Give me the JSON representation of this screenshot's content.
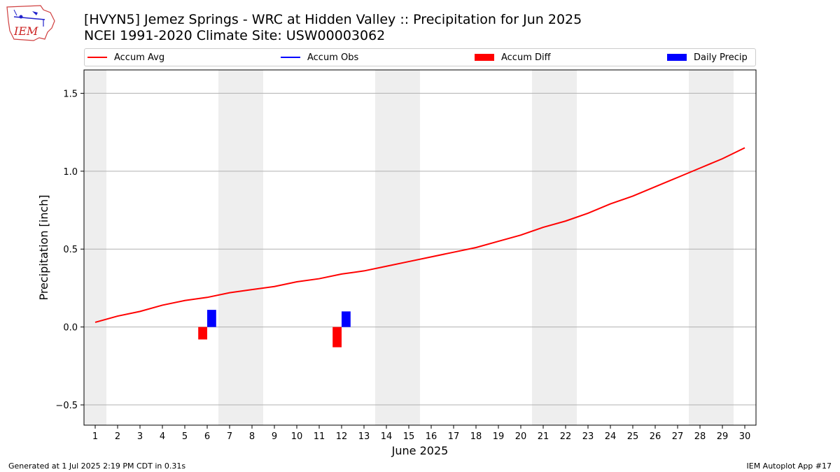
{
  "header": {
    "title_line1": "[HVYN5] Jemez Springs - WRC at Hidden Valley :: Precipitation for Jun 2025",
    "title_line2": "NCEI 1991-2020 Climate Site: USW00003062",
    "logo_text": "IEM"
  },
  "legend": {
    "items": [
      {
        "label": "Accum Avg",
        "kind": "line",
        "color": "#ff0000"
      },
      {
        "label": "Accum Obs",
        "kind": "line",
        "color": "#0000ff"
      },
      {
        "label": "Accum Diff",
        "kind": "patch",
        "color": "#ff0000"
      },
      {
        "label": "Daily Precip",
        "kind": "patch",
        "color": "#0000ff"
      }
    ],
    "placement": "top, above plot"
  },
  "footer": {
    "left": "Generated at 1 Jul 2025 2:19 PM CDT in 0.31s",
    "right": "IEM Autoplot App #17"
  },
  "chart_data": {
    "type": "line",
    "xlabel": "June 2025",
    "ylabel": "Precipitation [inch]",
    "xlim": [
      0.5,
      30.5
    ],
    "ylim": [
      -0.63,
      1.65
    ],
    "yticks": [
      -0.5,
      0.0,
      0.5,
      1.0,
      1.5
    ],
    "ytick_labels": [
      "−0.5",
      "0.0",
      "0.5",
      "1.0",
      "1.5"
    ],
    "x": [
      1,
      2,
      3,
      4,
      5,
      6,
      7,
      8,
      9,
      10,
      11,
      12,
      13,
      14,
      15,
      16,
      17,
      18,
      19,
      20,
      21,
      22,
      23,
      24,
      25,
      26,
      27,
      28,
      29,
      30
    ],
    "xtick_labels": [
      "1",
      "2",
      "3",
      "4",
      "5",
      "6",
      "7",
      "8",
      "9",
      "10",
      "11",
      "12",
      "13",
      "14",
      "15",
      "16",
      "17",
      "18",
      "19",
      "20",
      "21",
      "22",
      "23",
      "24",
      "25",
      "26",
      "27",
      "28",
      "29",
      "30"
    ],
    "grid": "horizontal",
    "weekend_shading": [
      [
        0.5,
        1.5
      ],
      [
        6.5,
        8.5
      ],
      [
        13.5,
        15.5
      ],
      [
        20.5,
        22.5
      ],
      [
        27.5,
        29.5
      ]
    ],
    "series": [
      {
        "name": "Accum Avg",
        "type": "line",
        "color": "#ff0000",
        "values": [
          0.03,
          0.07,
          0.1,
          0.14,
          0.17,
          0.19,
          0.22,
          0.24,
          0.26,
          0.29,
          0.31,
          0.34,
          0.36,
          0.39,
          0.42,
          0.45,
          0.48,
          0.51,
          0.55,
          0.59,
          0.64,
          0.68,
          0.73,
          0.79,
          0.84,
          0.9,
          0.96,
          1.02,
          1.08,
          1.15
        ]
      },
      {
        "name": "Accum Diff",
        "type": "bar",
        "color": "#ff0000",
        "points": [
          {
            "x": 6,
            "y": -0.08
          },
          {
            "x": 12,
            "y": -0.13
          }
        ]
      },
      {
        "name": "Daily Precip",
        "type": "bar",
        "color": "#0000ff",
        "points": [
          {
            "x": 6,
            "y": 0.11
          },
          {
            "x": 12,
            "y": 0.1
          }
        ]
      }
    ]
  }
}
